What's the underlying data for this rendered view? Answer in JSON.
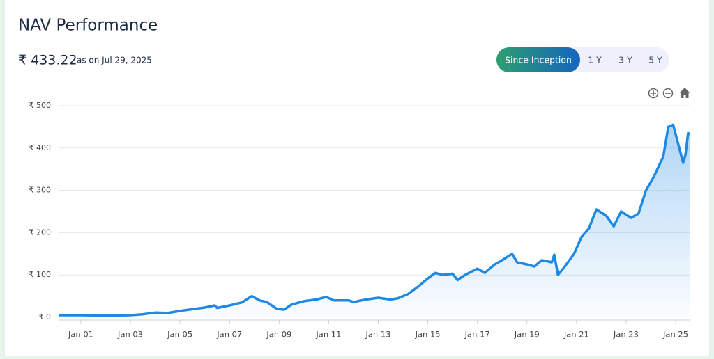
{
  "header": {
    "nav": "₹ 433.22",
    "as_of": "as on Jul 29, 2025"
  },
  "range_buttons": [
    "Since Inception",
    "1 Y",
    "3 Y",
    "5 Y"
  ],
  "chart_data": {
    "type": "line",
    "title": "NAV Performance",
    "color": "#1e88e5",
    "grid": true,
    "x": [
      2000.1,
      2001,
      2002,
      2003,
      2003.5,
      2004,
      2004.5,
      2005,
      2005.5,
      2006,
      2006.4,
      2006.5,
      2007,
      2007.5,
      2007.9,
      2008.2,
      2008.5,
      2008.9,
      2009.2,
      2009.5,
      2010,
      2010.5,
      2010.9,
      2011.2,
      2011.8,
      2012,
      2012.5,
      2013,
      2013.5,
      2013.8,
      2014.2,
      2014.6,
      2015,
      2015.3,
      2015.6,
      2016,
      2016.2,
      2016.5,
      2017,
      2017.3,
      2017.7,
      2018,
      2018.4,
      2018.6,
      2019,
      2019.3,
      2019.6,
      2020,
      2020.1,
      2020.25,
      2020.5,
      2020.9,
      2021.2,
      2021.5,
      2021.8,
      2022.2,
      2022.5,
      2022.8,
      2023.2,
      2023.5,
      2023.8,
      2024.1,
      2024.5,
      2024.7,
      2024.9,
      2025.1,
      2025.3,
      2025.4,
      2025.5,
      2025.57
    ],
    "values": [
      5,
      5,
      4,
      5,
      7,
      11,
      10,
      15,
      19,
      23,
      28,
      22,
      28,
      35,
      50,
      40,
      36,
      20,
      18,
      30,
      38,
      42,
      48,
      40,
      40,
      36,
      42,
      46,
      42,
      45,
      55,
      72,
      92,
      105,
      100,
      103,
      88,
      100,
      115,
      105,
      125,
      135,
      150,
      130,
      125,
      120,
      135,
      130,
      148,
      100,
      118,
      150,
      190,
      210,
      255,
      240,
      215,
      250,
      235,
      245,
      300,
      330,
      380,
      450,
      455,
      410,
      365,
      385,
      435,
      433.22
    ],
    "xlim": [
      2000.1,
      2025.59
    ],
    "xticks": [
      {
        "value": 2001,
        "label": "Jan 01"
      },
      {
        "value": 2003,
        "label": "Jan 03"
      },
      {
        "value": 2005,
        "label": "Jan 05"
      },
      {
        "value": 2007,
        "label": "Jan 07"
      },
      {
        "value": 2009,
        "label": "Jan 09"
      },
      {
        "value": 2011,
        "label": "Jan 11"
      },
      {
        "value": 2013,
        "label": "Jan 13"
      },
      {
        "value": 2015,
        "label": "Jan 15"
      },
      {
        "value": 2017,
        "label": "Jan 17"
      },
      {
        "value": 2019,
        "label": "Jan 19"
      },
      {
        "value": 2021,
        "label": "Jan 21"
      },
      {
        "value": 2023,
        "label": "Jan 23"
      },
      {
        "value": 2025,
        "label": "Jan 25"
      }
    ],
    "ylim": [
      0,
      500
    ],
    "yticks": [
      {
        "value": 0,
        "label": "₹ 0"
      },
      {
        "value": 100,
        "label": "₹ 100"
      },
      {
        "value": 200,
        "label": "₹ 200"
      },
      {
        "value": 300,
        "label": "₹ 300"
      },
      {
        "value": 400,
        "label": "₹ 400"
      },
      {
        "value": 500,
        "label": "₹ 500"
      }
    ]
  }
}
